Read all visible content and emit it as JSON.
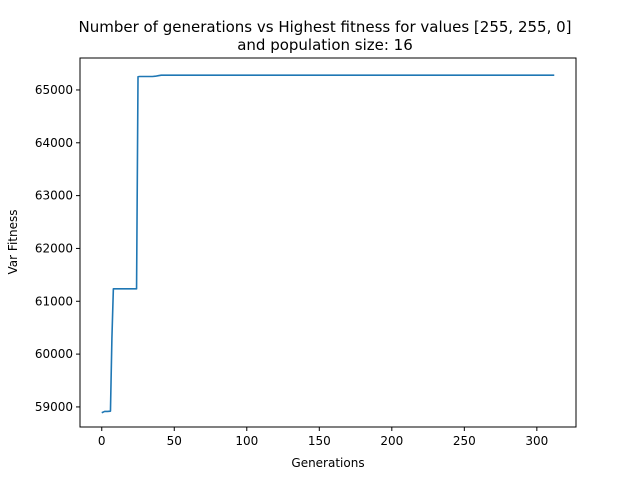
{
  "chart_data": {
    "type": "line",
    "title": "Number of generations vs Highest fitness for values [255, 255, 0]",
    "subtitle": "and population size: 16",
    "xlabel": "Generations",
    "ylabel": "Var Fitness",
    "xlim": [
      -15,
      327
    ],
    "ylim": [
      58620,
      65605
    ],
    "x_ticks": [
      0,
      50,
      100,
      150,
      200,
      250,
      300
    ],
    "x_tick_labels": [
      "0",
      "50",
      "100",
      "150",
      "200",
      "250",
      "300"
    ],
    "y_ticks": [
      59000,
      60000,
      61000,
      62000,
      63000,
      64000,
      65000
    ],
    "y_tick_labels": [
      "59000",
      "60000",
      "61000",
      "62000",
      "63000",
      "64000",
      "65000"
    ],
    "grid": false,
    "series": [
      {
        "color": "#1f77b4",
        "x": [
          0,
          2,
          4,
          6,
          7,
          8,
          10,
          15,
          20,
          24,
          25,
          26,
          30,
          35,
          37,
          39,
          40,
          41,
          45,
          50,
          100,
          150,
          200,
          250,
          300,
          312
        ],
        "y": [
          58890,
          58915,
          58915,
          58920,
          60300,
          61235,
          61235,
          61235,
          61235,
          61235,
          65250,
          65255,
          65255,
          65255,
          65260,
          65270,
          65275,
          65280,
          65280,
          65280,
          65280,
          65280,
          65280,
          65280,
          65280,
          65280
        ]
      }
    ]
  }
}
